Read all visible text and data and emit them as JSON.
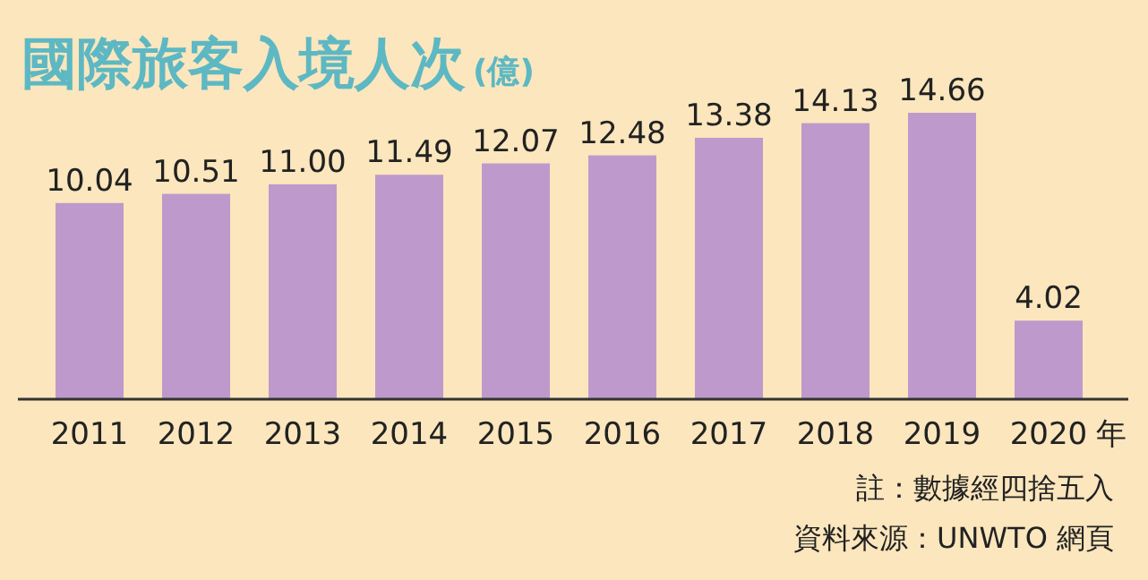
{
  "chart_data": {
    "type": "bar",
    "title": "國際旅客入境人次",
    "subtitle": "(億)",
    "xlabel": "年",
    "categories": [
      "2011",
      "2012",
      "2013",
      "2014",
      "2015",
      "2016",
      "2017",
      "2018",
      "2019",
      "2020"
    ],
    "values": [
      10.04,
      10.51,
      11.0,
      11.49,
      12.07,
      12.48,
      13.38,
      14.13,
      14.66,
      4.02
    ],
    "value_labels": [
      "10.04",
      "10.51",
      "11.00",
      "11.49",
      "12.07",
      "12.48",
      "13.38",
      "14.13",
      "14.66",
      "4.02"
    ],
    "color": "#bd9acb",
    "annotations": [
      "註：數據經四捨五入",
      "資料來源：UNWTO 網頁"
    ]
  }
}
